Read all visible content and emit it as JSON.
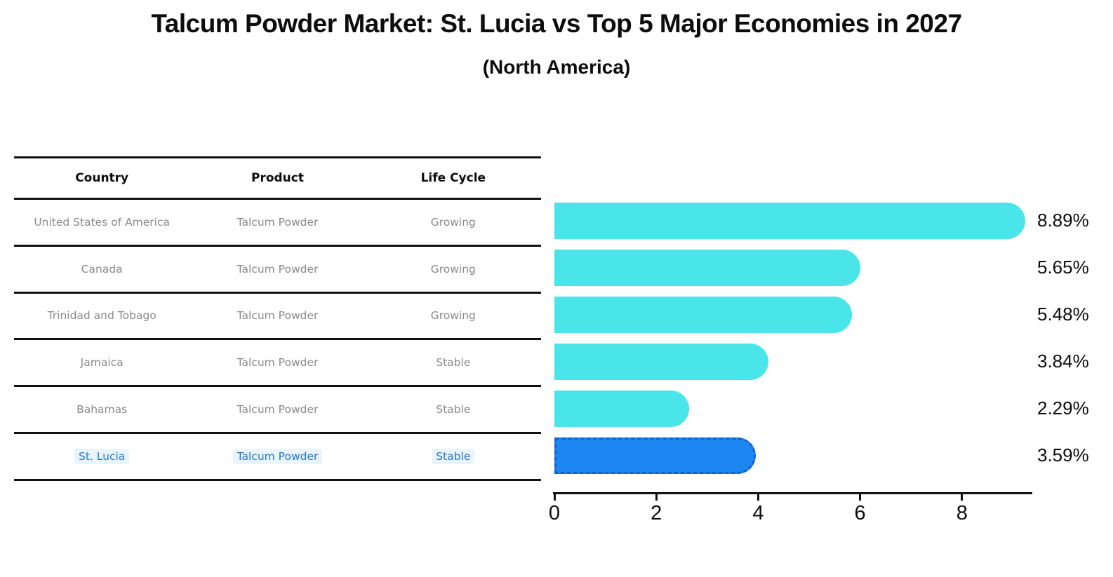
{
  "title": "Talcum Powder Market: St. Lucia vs Top 5 Major Economies in 2027",
  "subtitle": "(North America)",
  "table": {
    "headers": [
      "Country",
      "Product",
      "Life Cycle"
    ],
    "rows": [
      {
        "country": "United States of America",
        "product": "Talcum Powder",
        "life_cycle": "Growing",
        "value_label": "8.89%",
        "highlighted": false
      },
      {
        "country": "Canada",
        "product": "Talcum Powder",
        "life_cycle": "Growing",
        "value_label": "5.65%",
        "highlighted": false
      },
      {
        "country": "Trinidad and Tobago",
        "product": "Talcum Powder",
        "life_cycle": "Growing",
        "value_label": "5.48%",
        "highlighted": false
      },
      {
        "country": "Jamaica",
        "product": "Talcum Powder",
        "life_cycle": "Stable",
        "value_label": "3.84%",
        "highlighted": false
      },
      {
        "country": "Bahamas",
        "product": "Talcum Powder",
        "life_cycle": "Stable",
        "value_label": "2.29%",
        "highlighted": false
      },
      {
        "country": "St. Lucia",
        "product": "Talcum Powder",
        "life_cycle": "Stable",
        "value_label": "3.59%",
        "highlighted": true
      }
    ]
  },
  "chart_data": {
    "type": "bar",
    "orientation": "horizontal",
    "title": "Talcum Powder Market: St. Lucia vs Top 5 Major Economies in 2027 (North America)",
    "categories": [
      "United States of America",
      "Canada",
      "Trinidad and Tobago",
      "Jamaica",
      "Bahamas",
      "St. Lucia"
    ],
    "values": [
      8.89,
      5.65,
      5.48,
      3.84,
      2.29,
      3.59
    ],
    "value_labels": [
      "8.89%",
      "5.65%",
      "5.48%",
      "3.84%",
      "2.29%",
      "3.59%"
    ],
    "xlabel": "",
    "ylabel": "",
    "x_ticks": [
      0,
      2,
      4,
      6,
      8
    ],
    "xlim": [
      0,
      9.35
    ],
    "grid": false,
    "legend": "none",
    "highlight_index": 5
  },
  "colors": {
    "bar": "#4AE5E8",
    "highlight_bar": "#1E86F0",
    "highlight_border": "#1263CF",
    "highlight_text": "#2577CD",
    "row_text": "#8A8A8A",
    "axis": "#111111"
  }
}
